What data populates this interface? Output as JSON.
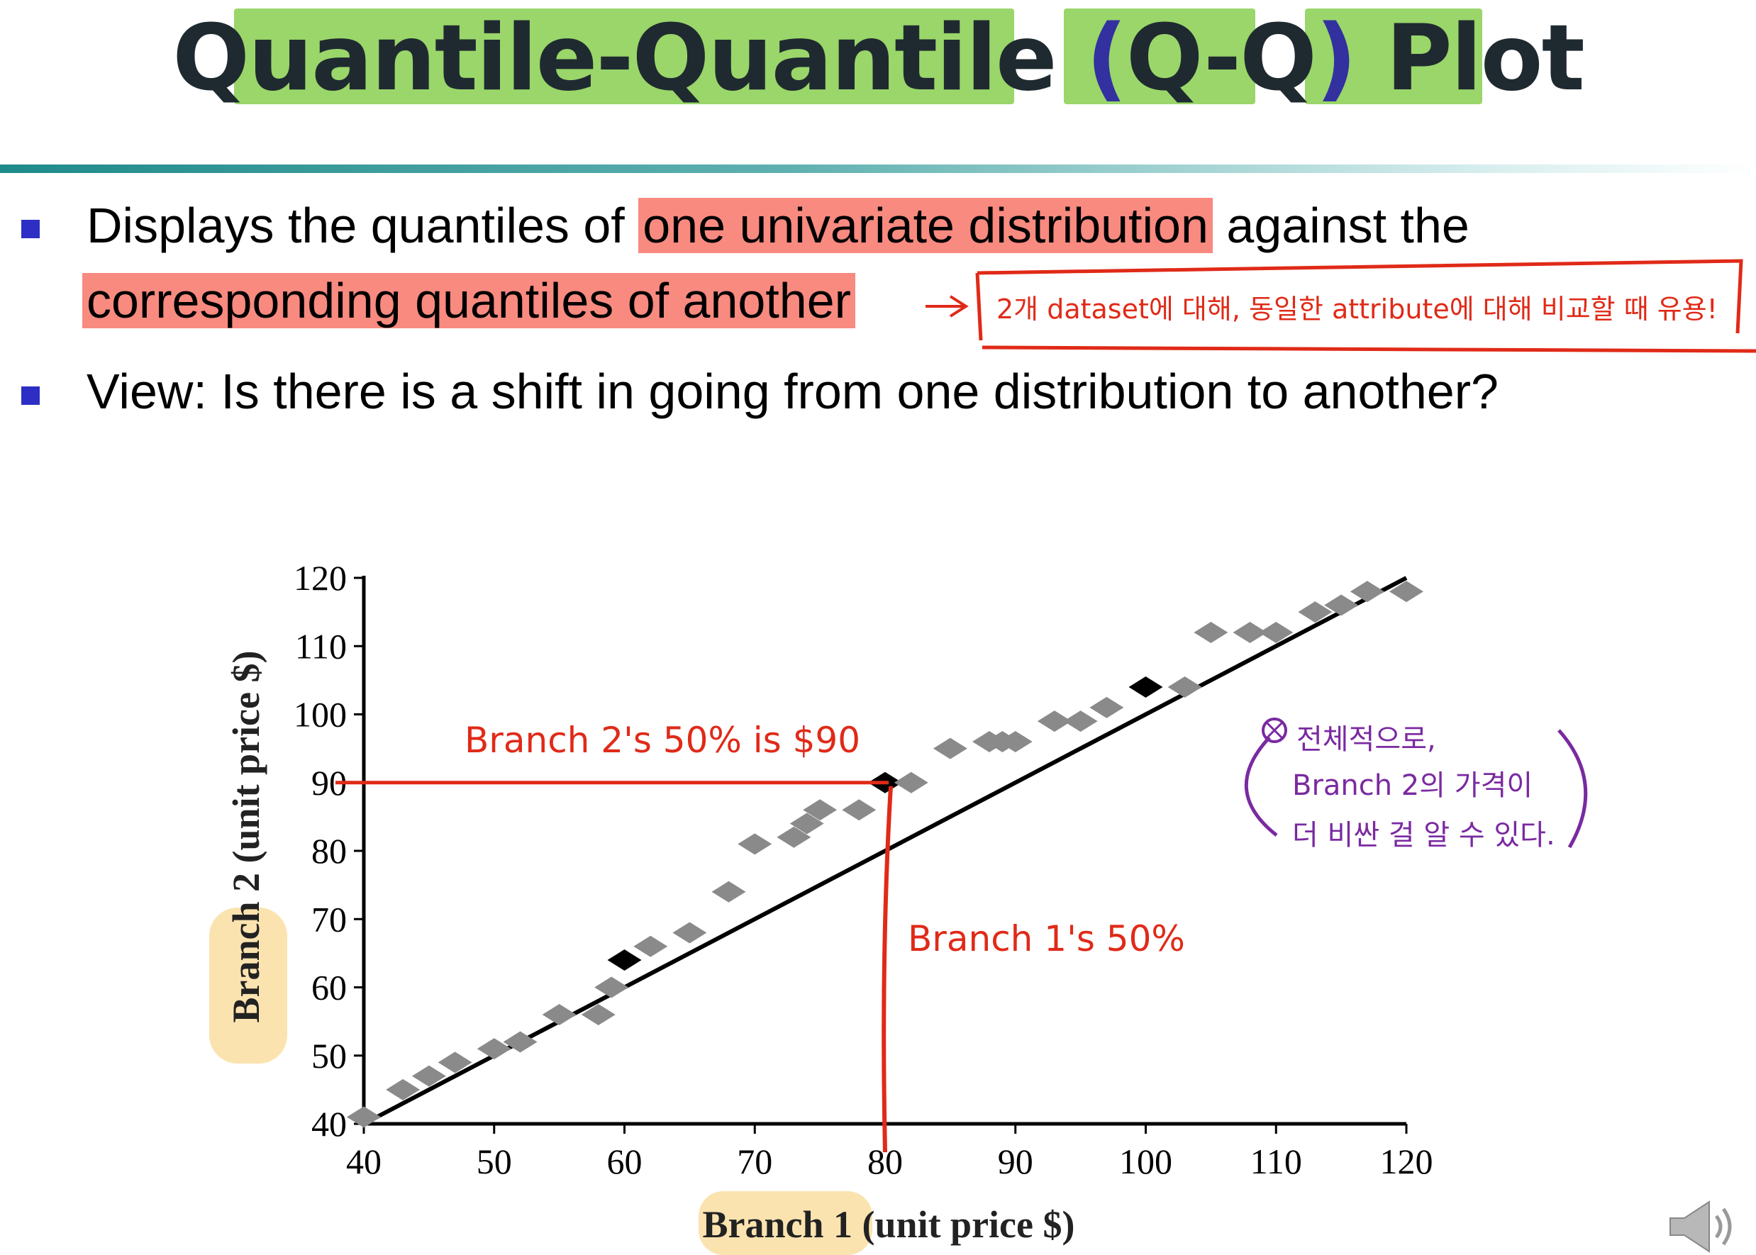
{
  "title": {
    "main": "Quantile-Quantile ",
    "lparen": "(",
    "qq": "Q-Q",
    "rparen": ")",
    "plot": " Plot"
  },
  "bullets": [
    {
      "line1_a": "Displays the quantiles of ",
      "line1_hl": "one univariate distribution",
      "line1_b": " against the",
      "line2_hl": "corresponding quantiles of another"
    },
    {
      "text": "View: Is there is a shift in going from one distribution to another?"
    }
  ],
  "annotations": {
    "boxed_note": "2개 dataset에 대해, 동일한 attribute에 대해 비교할 때 유용!",
    "branch2_note": "Branch 2's 50% is $90",
    "branch1_note": "Branch 1's 50%",
    "summary_line1": "전체적으로,",
    "summary_line2": "Branch 2의 가격이",
    "summary_line3": "더 비싼 걸 알 수 있다."
  },
  "colors": {
    "title_highlight": "#8fd25a",
    "text_highlight": "#f88a80",
    "annotation_red": "#e02a18",
    "annotation_purple": "#7a2aa0",
    "bullet": "#2d2fc4",
    "point_gray": "#8a8a8a",
    "point_dark": "#000000"
  },
  "chart_data": {
    "type": "scatter",
    "xlabel": "Branch 1 (unit price $)",
    "ylabel": "Branch 2 (unit price $)",
    "xlim": [
      40,
      120
    ],
    "ylim": [
      40,
      120
    ],
    "xticks": [
      "40",
      "50",
      "60",
      "70",
      "80",
      "90",
      "100",
      "110",
      "120"
    ],
    "yticks": [
      "40",
      "50",
      "60",
      "70",
      "80",
      "90",
      "100",
      "110",
      "120"
    ],
    "reference_line": [
      [
        40,
        40
      ],
      [
        120,
        120
      ]
    ],
    "points": [
      {
        "x": 40,
        "y": 41
      },
      {
        "x": 43,
        "y": 45
      },
      {
        "x": 45,
        "y": 47
      },
      {
        "x": 47,
        "y": 49
      },
      {
        "x": 50,
        "y": 51
      },
      {
        "x": 52,
        "y": 52
      },
      {
        "x": 55,
        "y": 56
      },
      {
        "x": 58,
        "y": 56
      },
      {
        "x": 59,
        "y": 60
      },
      {
        "x": 60,
        "y": 64,
        "highlight": true
      },
      {
        "x": 62,
        "y": 66
      },
      {
        "x": 65,
        "y": 68
      },
      {
        "x": 68,
        "y": 74
      },
      {
        "x": 70,
        "y": 81
      },
      {
        "x": 73,
        "y": 82
      },
      {
        "x": 74,
        "y": 84
      },
      {
        "x": 75,
        "y": 86
      },
      {
        "x": 78,
        "y": 86
      },
      {
        "x": 80,
        "y": 90,
        "highlight": true
      },
      {
        "x": 82,
        "y": 90
      },
      {
        "x": 85,
        "y": 95
      },
      {
        "x": 88,
        "y": 96
      },
      {
        "x": 89,
        "y": 96
      },
      {
        "x": 90,
        "y": 96
      },
      {
        "x": 93,
        "y": 99
      },
      {
        "x": 95,
        "y": 99
      },
      {
        "x": 97,
        "y": 101
      },
      {
        "x": 100,
        "y": 104,
        "highlight": true
      },
      {
        "x": 103,
        "y": 104
      },
      {
        "x": 105,
        "y": 112
      },
      {
        "x": 108,
        "y": 112
      },
      {
        "x": 110,
        "y": 112
      },
      {
        "x": 113,
        "y": 115
      },
      {
        "x": 115,
        "y": 116
      },
      {
        "x": 117,
        "y": 118
      },
      {
        "x": 120,
        "y": 118
      }
    ],
    "guide": {
      "x": 80,
      "y": 90
    }
  }
}
